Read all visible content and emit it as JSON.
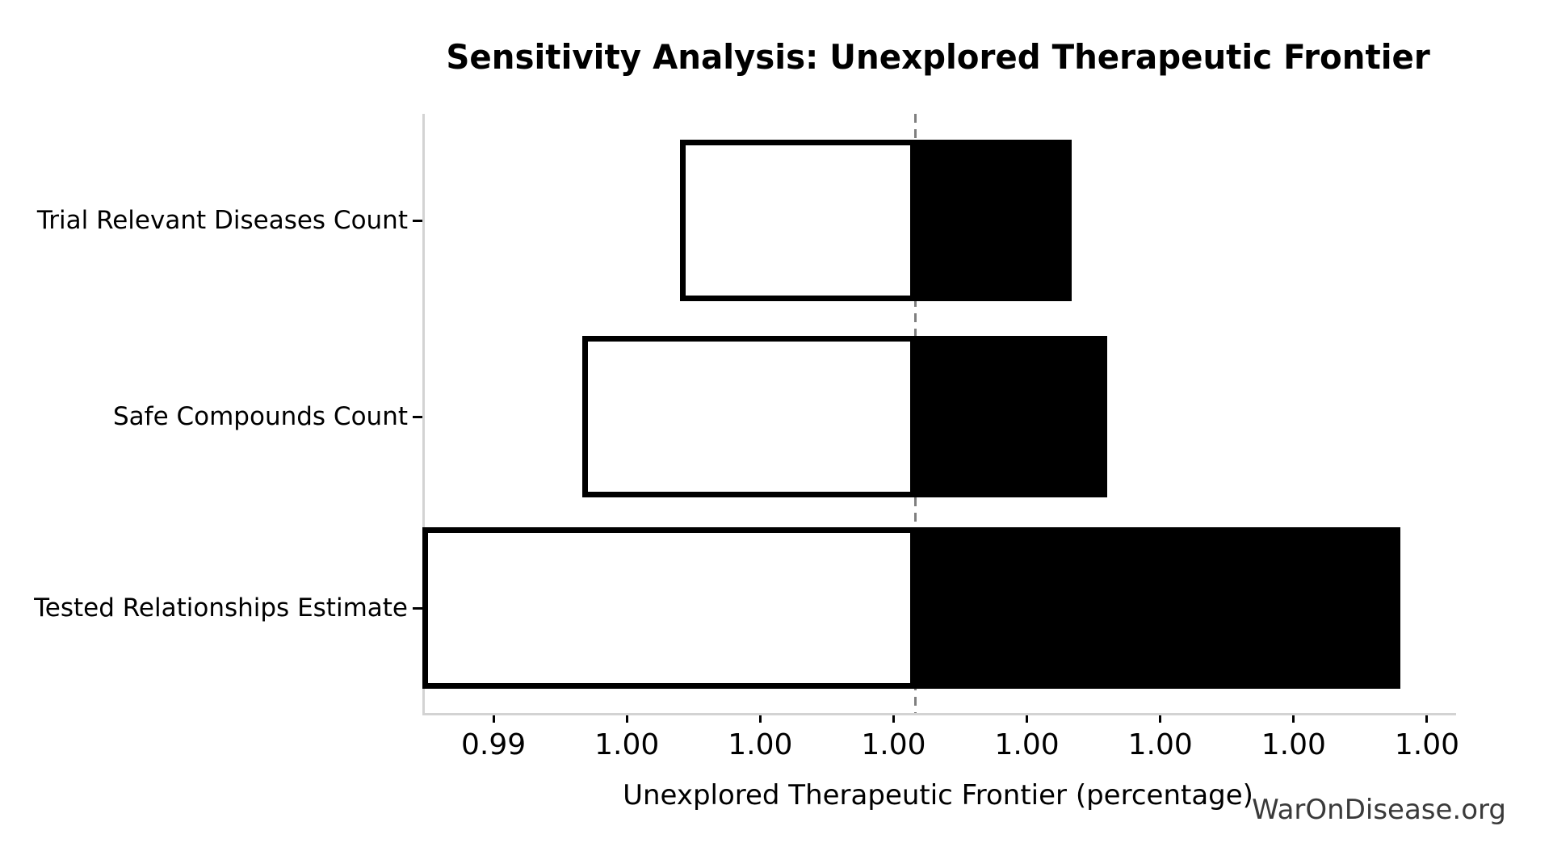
{
  "page": {
    "watermark": "WarOnDisease.org"
  },
  "chart_data": {
    "type": "bar",
    "variant": "tornado-sensitivity",
    "orientation": "horizontal",
    "title": "Sensitivity Analysis: Unexplored Therapeutic Frontier",
    "xlabel": "Unexplored Therapeutic Frontier (percentage)",
    "ylabel": "",
    "categories": [
      "Trial Relevant Diseases Count",
      "Safe Compounds Count",
      "Tested Relationships Estimate"
    ],
    "baseline_value": 0.99875,
    "bars": [
      {
        "category": "Trial Relevant Diseases Count",
        "low": 0.9961,
        "high": 1.0005
      },
      {
        "category": "Safe Compounds Count",
        "low": 0.995,
        "high": 1.0009
      },
      {
        "category": "Tested Relationships Estimate",
        "low": 0.9932,
        "high": 1.0042
      }
    ],
    "xlim": [
      0.9932,
      1.0048
    ],
    "x_ticks": [
      {
        "value": 0.994,
        "label": "0.99"
      },
      {
        "value": 0.9955,
        "label": "1.00"
      },
      {
        "value": 0.997,
        "label": "1.00"
      },
      {
        "value": 0.9985,
        "label": "1.00"
      },
      {
        "value": 1.0,
        "label": "1.00"
      },
      {
        "value": 1.0015,
        "label": "1.00"
      },
      {
        "value": 1.003,
        "label": "1.00"
      },
      {
        "value": 1.0045,
        "label": "1.00"
      }
    ],
    "grid": false,
    "legend": null,
    "reference_line": {
      "value": 0.99875,
      "style": "dashed",
      "color": "#7f7f7f"
    },
    "colors": {
      "low_segment_fill": "#ffffff",
      "low_segment_edge": "#000000",
      "high_segment_fill": "#000000",
      "spine": "#d3d3d3",
      "tick": "#000000",
      "text": "#000000",
      "watermark_text": "#3a3a3a"
    }
  }
}
